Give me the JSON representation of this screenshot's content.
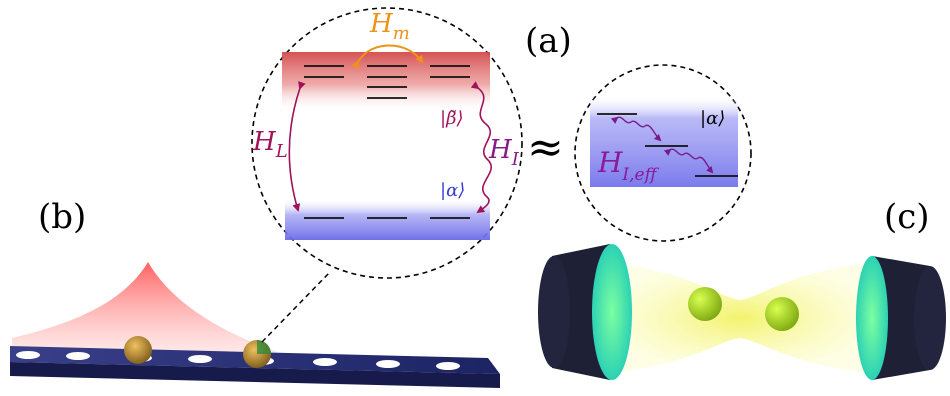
{
  "panel_labels": {
    "a": "(a)",
    "b": "(b)",
    "c": "(c)"
  },
  "symbols": {
    "h_m": "H",
    "h_m_sub": "m",
    "h_l": "H",
    "h_l_sub": "L",
    "h_i": "H",
    "h_i_sub": "I",
    "h_i_eff": "H",
    "h_i_eff_sub": "I,eff",
    "beta_ket": "|β̃⟩",
    "alpha_ket_main": "|α⟩",
    "alpha_ket_zoom": "|α⟩",
    "approx": "≈"
  },
  "colors": {
    "upper_band": "#e06060",
    "lower_band": "#7a7aee",
    "hm_arrow": "#f0921a",
    "coupling_arrow": "#a0125a",
    "hi_label": "#8a1a8a",
    "heff_label": "#8a1a9a",
    "waveguide": "#2a3580",
    "emission": "#ff5a5a",
    "cavity_beam": "#f4f45a",
    "mirror_face": "#3de0b0",
    "mirror_body": "#202238"
  }
}
